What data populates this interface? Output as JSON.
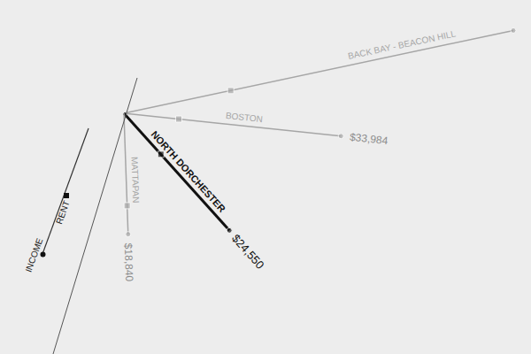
{
  "chart_data": {
    "type": "radial",
    "categories": [
      "RENT",
      "INCOME"
    ],
    "tick_labels": false,
    "series": [
      {
        "name": "BACK BAY - BEACON HILL",
        "color": "#a6a6a6",
        "values": [
          17000,
          62000
        ],
        "value_labels": [
          null,
          null
        ]
      },
      {
        "name": "BOSTON",
        "color": "#a6a6a6",
        "values": [
          8600,
          33984
        ],
        "value_labels": [
          null,
          "$33,984"
        ]
      },
      {
        "name": "NORTH DORCHESTER",
        "color": "#111111",
        "values": [
          8600,
          24550
        ],
        "value_labels": [
          null,
          "$24,550"
        ]
      },
      {
        "name": "MATTAPAN",
        "color": "#a6a6a6",
        "values": [
          14400,
          18840
        ],
        "value_labels": [
          null,
          "$18,840"
        ]
      }
    ]
  }
}
